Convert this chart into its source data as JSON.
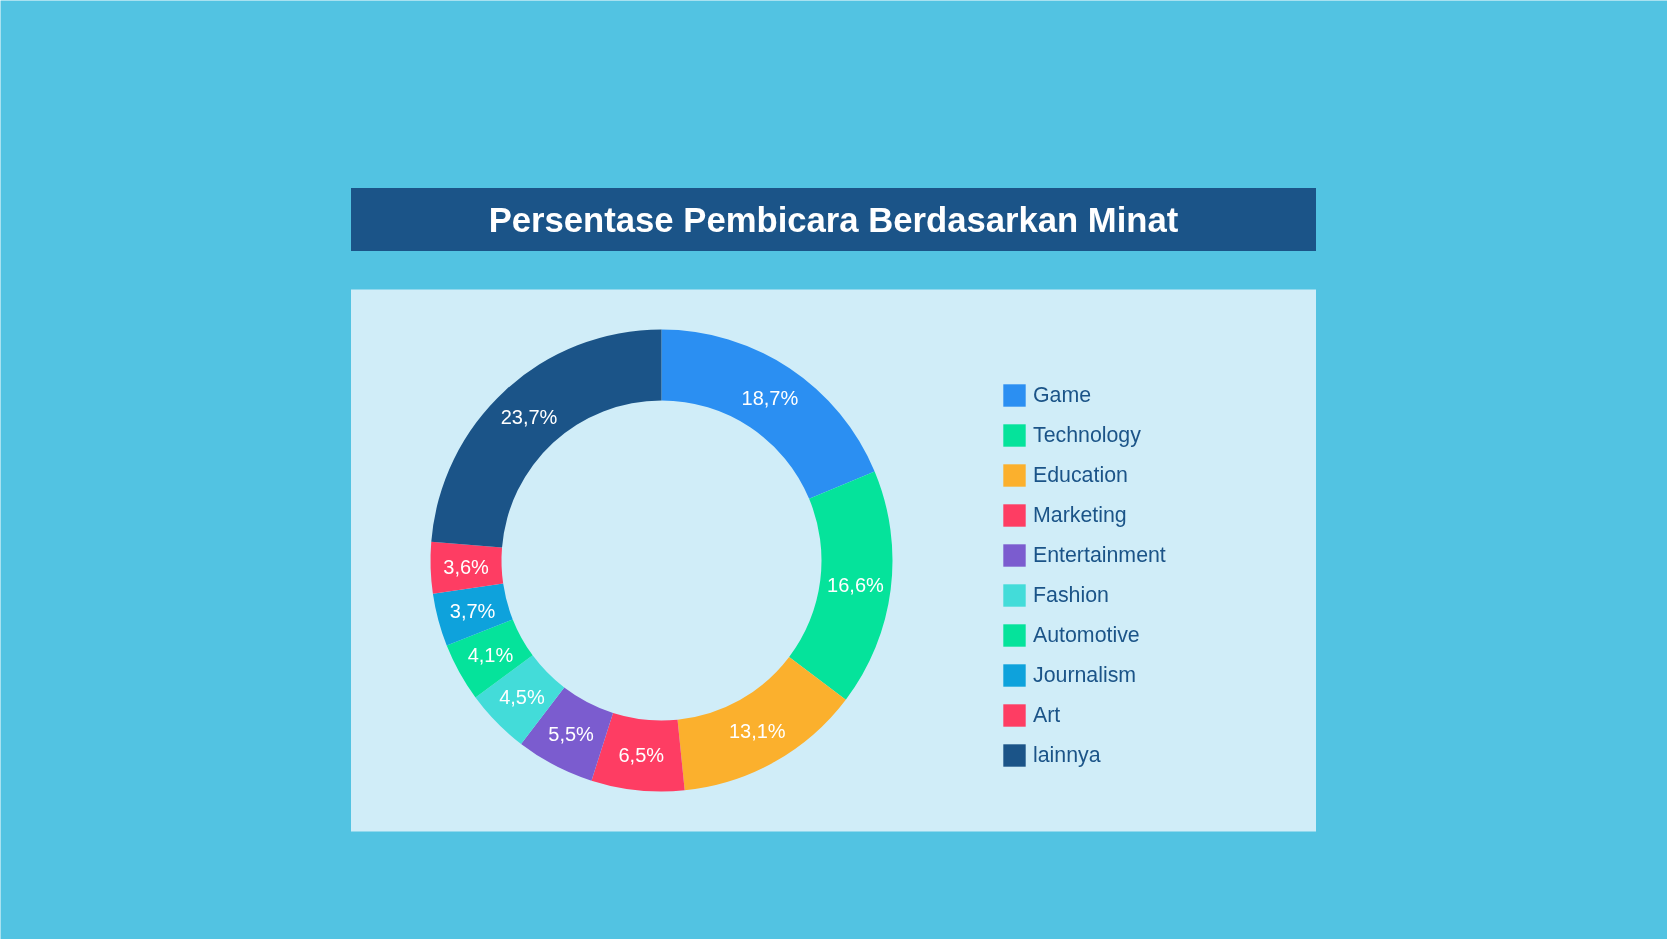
{
  "chart_data": {
    "type": "donut",
    "title": "Persentase Pembicara Berdasarkan Minat",
    "categories": [
      "Game",
      "Technology",
      "Education",
      "Marketing",
      "Entertainment",
      "Fashion",
      "Automotive",
      "Journalism",
      "Art",
      "lainnya"
    ],
    "values": [
      18.7,
      16.6,
      13.1,
      6.5,
      5.5,
      4.5,
      4.1,
      3.7,
      3.6,
      23.7
    ],
    "colors": [
      "#2b8ff2",
      "#05e39b",
      "#fbb02d",
      "#fe3d63",
      "#7b5ccf",
      "#43dcd9",
      "#05e39b",
      "#0ea2dc",
      "#fe3d63",
      "#1b5488"
    ],
    "value_labels": [
      "18,7%",
      "16,6%",
      "13,1%",
      "6,5%",
      "5,5%",
      "4,5%",
      "4,1%",
      "3,7%",
      "3,6%",
      "23,7%"
    ],
    "legend": "right"
  }
}
